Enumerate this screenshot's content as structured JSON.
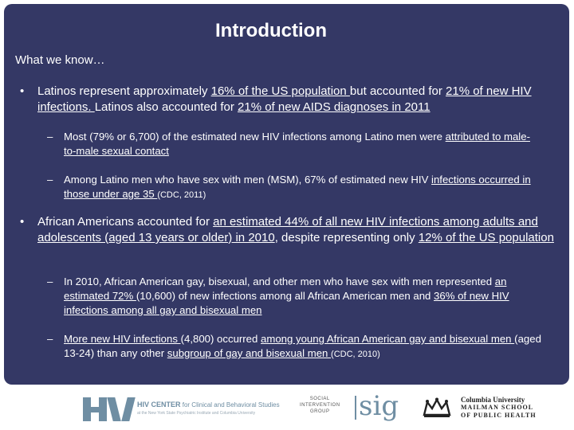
{
  "title": "Introduction",
  "subhead": "What we know…",
  "bullet_symbol": "•",
  "dash_symbol": "–",
  "bullet1": {
    "p1": "Latinos represent approximately ",
    "u1": "16% of the US population ",
    "p2": "but accounted for ",
    "u2": "21% of new HIV infections. ",
    "p3": "Latinos also accounted for ",
    "u3": "21% of new AIDS diagnoses in 2011",
    "sub1": {
      "p1": "Most (79% or 6,700) of the estimated new HIV infections among Latino men were ",
      "u1": "attributed to male-to-male sexual contact"
    },
    "sub2": {
      "p1": "Among Latino men who have sex with men (MSM), 67% of estimated new HIV ",
      "u1": "infections occurred in those under age 35 ",
      "cite": "(CDC, 2011)"
    }
  },
  "bullet2": {
    "p1": "African Americans accounted for ",
    "u1": "an estimated 44% of all new HIV infections among adults and adolescents (aged 13 years or older) in 2010",
    "p2": ", despite representing only ",
    "u2": "12% of the US population",
    "sub1": {
      "p1": "In 2010, African American gay, bisexual, and other men who have sex with men represented ",
      "u1": "an estimated 72% ",
      "p2": "(10,600) of new infections among all African American men and ",
      "u2": "36% of new HIV infections among all gay and bisexual men"
    },
    "sub2": {
      "u1": "More new HIV infections ",
      "p1": "(4,800) occurred ",
      "u2": "among young African American gay and bisexual men ",
      "p2": "(aged 13-24) than any other ",
      "u3": "subgroup of gay and bisexual men ",
      "cite": "(CDC, 2010)"
    }
  },
  "footer": {
    "hiv_line1": "HIV CENTER",
    "hiv_line2": " for Clinical and Behavioral Studies",
    "hiv_line3": "at the New York State Psychiatric Institute and Columbia University",
    "sig_left": [
      "SOCIAL",
      "INTERVENTION",
      "GROUP"
    ],
    "sig_word": "sig",
    "columbia_line1": "Columbia University",
    "columbia_line2": "MAILMAN SCHOOL",
    "columbia_line3": "OF PUBLIC HEALTH"
  },
  "colors": {
    "panel": "#343865",
    "logo_blue": "#6f8ea3"
  }
}
